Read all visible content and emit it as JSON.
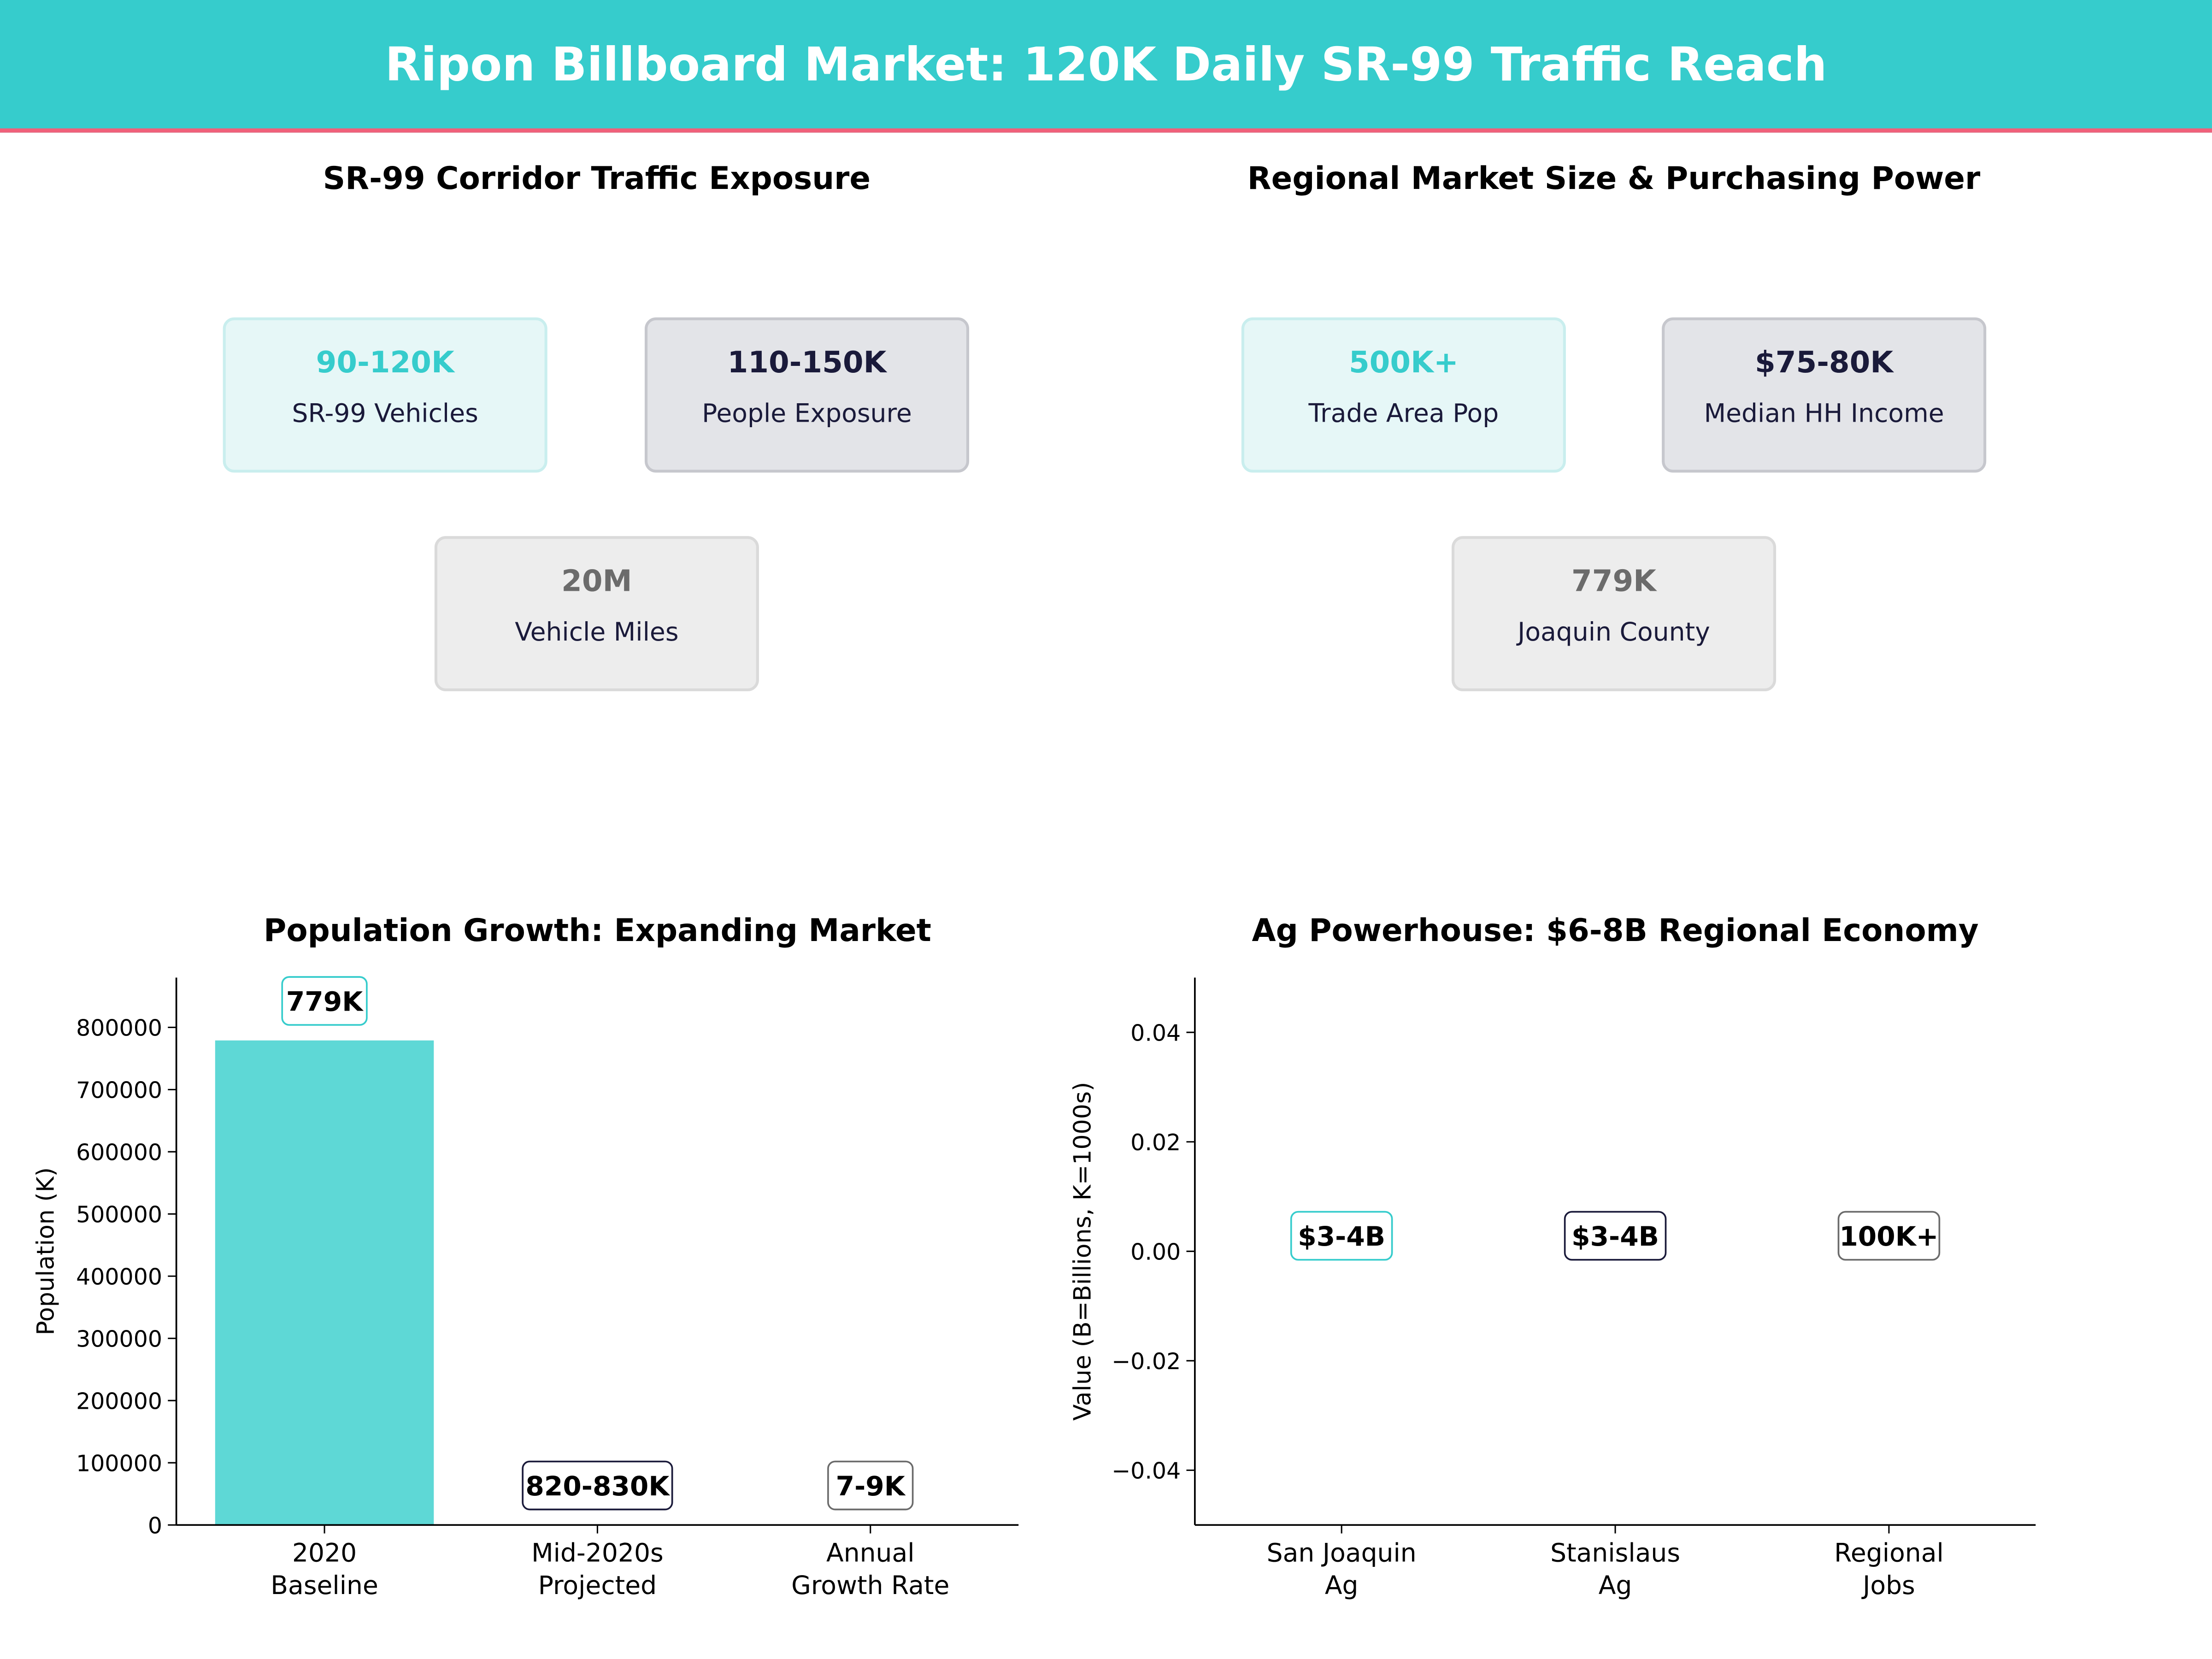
{
  "title": "Ripon Billboard Market: 120K Daily SR-99 Traffic Reach",
  "colors": {
    "teal": "#36CCCC",
    "navy": "#1a1a3a",
    "gray": "#6b6b6b",
    "accent_line": "#F0607A"
  },
  "panel_traffic": {
    "title": "SR-99 Corridor Traffic Exposure",
    "cards": [
      {
        "value": "90-120K",
        "label": "SR-99 Vehicles"
      },
      {
        "value": "110-150K",
        "label": "People Exposure"
      },
      {
        "value": "20M",
        "label": "Vehicle Miles"
      }
    ]
  },
  "panel_market": {
    "title": "Regional Market Size & Purchasing Power",
    "cards": [
      {
        "value": "500K+",
        "label": "Trade Area Pop"
      },
      {
        "value": "$75-80K",
        "label": "Median HH Income"
      },
      {
        "value": "779K",
        "label": "Joaquin County"
      }
    ]
  },
  "chart_data": [
    {
      "type": "bar",
      "title": "Population Growth: Expanding Market",
      "xlabel": "",
      "ylabel": "Population (K)",
      "categories": [
        "2020\nBaseline",
        "Mid-2020s\nProjected",
        "Annual\nGrowth Rate"
      ],
      "values": [
        779000,
        0,
        0
      ],
      "data_labels": [
        "779K",
        "820-830K",
        "7-9K"
      ],
      "ylim": [
        0,
        880000
      ],
      "yticks": [
        0,
        100000,
        200000,
        300000,
        400000,
        500000,
        600000,
        700000,
        800000
      ]
    },
    {
      "type": "bar",
      "title": "Ag Powerhouse: $6-8B Regional Economy",
      "xlabel": "",
      "ylabel": "Value (B=Billions, K=1000s)",
      "categories": [
        "San Joaquin\nAg",
        "Stanislaus\nAg",
        "Regional\nJobs"
      ],
      "values": [
        0,
        0,
        0
      ],
      "data_labels": [
        "$3-4B",
        "$3-4B",
        "100K+"
      ],
      "ylim": [
        -0.05,
        0.05
      ],
      "yticks": [
        "−0.04",
        "−0.02",
        "0.00",
        "0.02",
        "0.04"
      ]
    }
  ]
}
